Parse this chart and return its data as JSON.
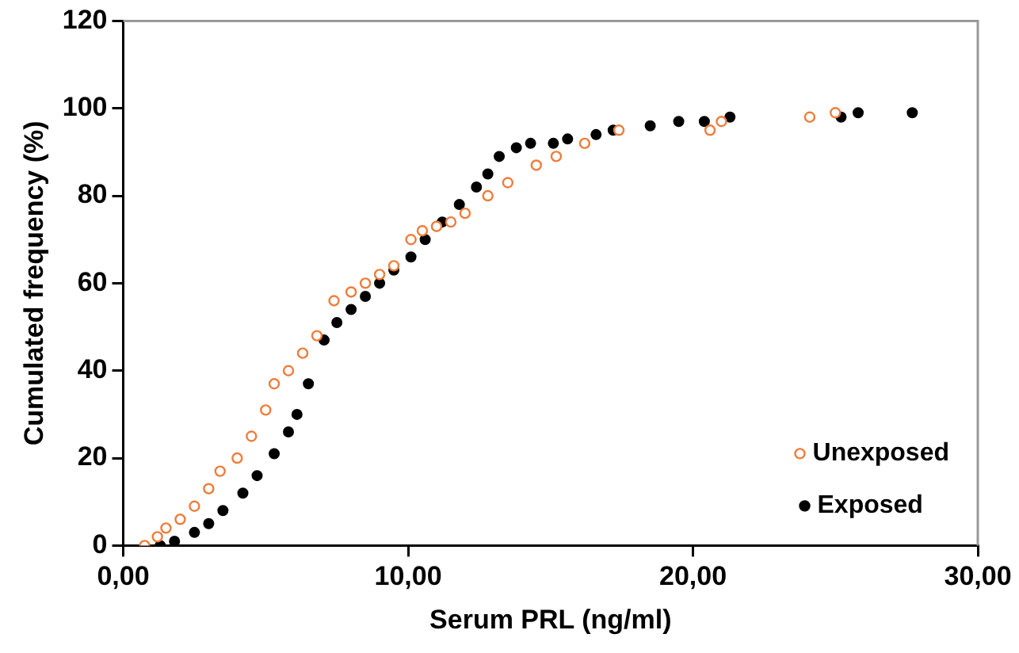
{
  "chart_data": {
    "type": "scatter",
    "xlabel": "Serum PRL (ng/ml)",
    "ylabel": "Cumulated frequency (%)",
    "xlim": [
      0,
      30
    ],
    "xticks": [
      {
        "value": 0,
        "label": "0,00"
      },
      {
        "value": 10,
        "label": "10,00"
      },
      {
        "value": 20,
        "label": "20,00"
      },
      {
        "value": 30,
        "label": "30,00"
      }
    ],
    "ylim": [
      0,
      120
    ],
    "yticks": [
      0,
      20,
      40,
      60,
      80,
      100,
      120
    ],
    "grid": false,
    "legend": "bottom right",
    "marker": "circle",
    "series": [
      {
        "name": "Unexposed",
        "color": "#ee7d3b",
        "x": [
          0.75,
          1.2,
          1.5,
          2,
          2.5,
          3,
          3.4,
          4,
          4.5,
          5,
          5.3,
          5.8,
          6.3,
          6.8,
          7.4,
          8,
          8.5,
          9,
          9.5,
          10.1,
          10.5,
          11,
          11.5,
          12,
          12.8,
          13.5,
          14.5,
          15.2,
          16.2,
          17.4,
          20.6,
          21,
          24.1,
          25
        ],
        "values": [
          0,
          2,
          4,
          6,
          9,
          13,
          17,
          20,
          25,
          31,
          37,
          40,
          44,
          48,
          56,
          58,
          60,
          62,
          64,
          70,
          72,
          73,
          74,
          76,
          80,
          83,
          87,
          89,
          92,
          95,
          95,
          97,
          98,
          99
        ]
      },
      {
        "name": "Exposed",
        "color": "#000000",
        "x": [
          1.3,
          1.8,
          2.5,
          3,
          3.5,
          4.2,
          4.7,
          5.3,
          5.8,
          6.1,
          6.5,
          7.05,
          7.5,
          8,
          8.5,
          9,
          9.5,
          10.1,
          10.6,
          11.2,
          11.8,
          12.4,
          12.8,
          13.2,
          13.8,
          14.3,
          15.1,
          15.6,
          16.6,
          17.2,
          18.5,
          19.5,
          20.4,
          21.3,
          25.2,
          25.8,
          27.7
        ],
        "values": [
          0,
          1,
          3,
          5,
          8,
          12,
          16,
          21,
          26,
          30,
          37,
          47,
          51,
          54,
          57,
          60,
          63,
          66,
          70,
          74,
          78,
          82,
          85,
          89,
          91,
          92,
          92,
          93,
          94,
          95,
          96,
          97,
          97,
          98,
          98,
          99,
          99
        ]
      }
    ]
  }
}
